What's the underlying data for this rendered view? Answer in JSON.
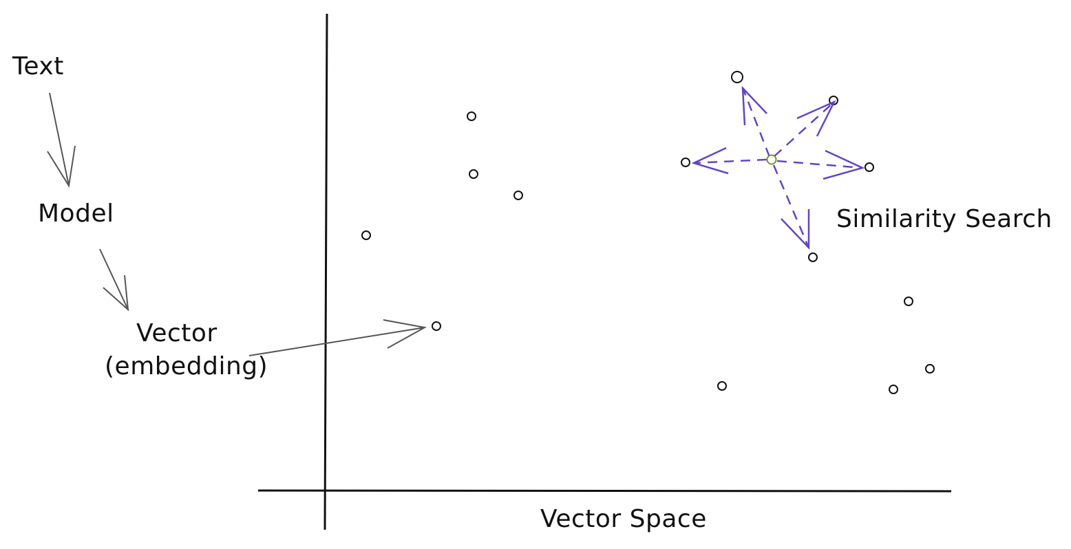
{
  "labels": {
    "text": "Text",
    "model": "Model",
    "vector": "Vector",
    "embedding": "(embedding)",
    "similarity_search": "Similarity Search",
    "vector_space": "Vector Space"
  },
  "colors": {
    "ink": "#111111",
    "arrow_gray": "#555555",
    "search_arrow": "#6244c5",
    "query_point": "#6b9a2e",
    "background": "#ffffff"
  },
  "icons": {
    "flow_arrow": "arrow-down-icon",
    "embedding_arrow": "arrow-right-icon"
  }
}
